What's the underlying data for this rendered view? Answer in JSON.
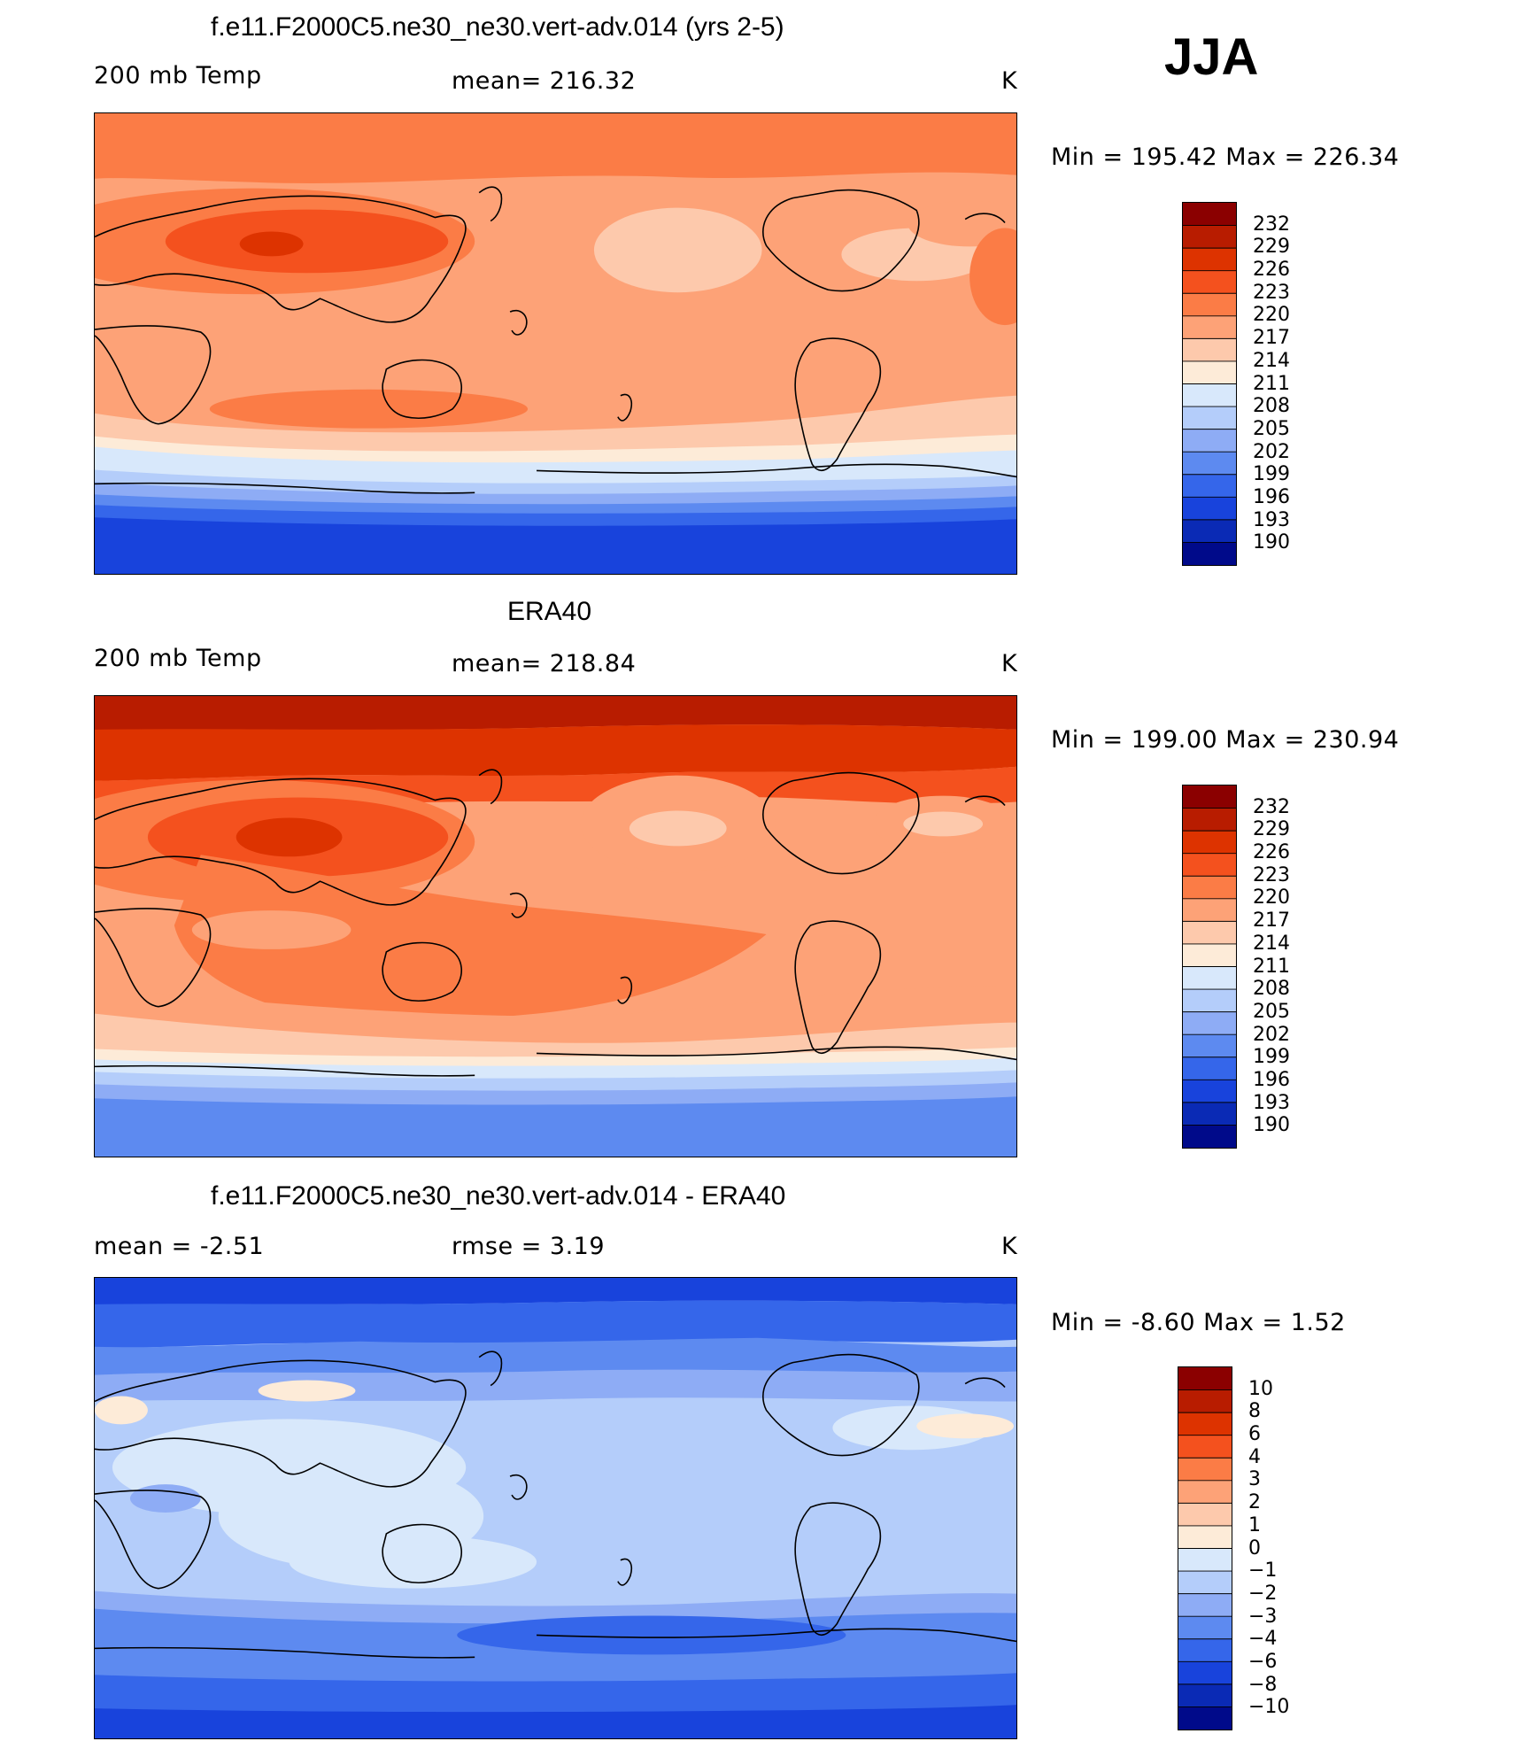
{
  "season": "JJA",
  "panels": [
    {
      "title": "f.e11.F2000C5.ne30_ne30.vert-adv.014 (yrs 2-5)",
      "left_label": "200 mb Temp",
      "center_label": "mean=  216.32",
      "units": "K",
      "minmax": "Min  =  195.42  Max  =  226.34",
      "colorbar": {
        "labels": [
          "232",
          "229",
          "226",
          "223",
          "220",
          "217",
          "214",
          "211",
          "208",
          "205",
          "202",
          "199",
          "196",
          "193",
          "190"
        ],
        "colors": [
          "#8b0000",
          "#b81c00",
          "#dd3300",
          "#f4511e",
          "#fb7c46",
          "#fda277",
          "#fdc9ac",
          "#fdebd8",
          "#d8e8fb",
          "#b4cdfa",
          "#8eacf5",
          "#5d8af0",
          "#3566ea",
          "#1843dc",
          "#0a2ab5",
          "#000a8a"
        ]
      }
    },
    {
      "title": "ERA40",
      "left_label": "200 mb Temp",
      "center_label": "mean=  218.84",
      "units": "K",
      "minmax": "Min  =  199.00  Max  =  230.94",
      "colorbar": {
        "labels": [
          "232",
          "229",
          "226",
          "223",
          "220",
          "217",
          "214",
          "211",
          "208",
          "205",
          "202",
          "199",
          "196",
          "193",
          "190"
        ],
        "colors": [
          "#8b0000",
          "#b81c00",
          "#dd3300",
          "#f4511e",
          "#fb7c46",
          "#fda277",
          "#fdc9ac",
          "#fdebd8",
          "#d8e8fb",
          "#b4cdfa",
          "#8eacf5",
          "#5d8af0",
          "#3566ea",
          "#1843dc",
          "#0a2ab5",
          "#000a8a"
        ]
      }
    },
    {
      "title": "f.e11.F2000C5.ne30_ne30.vert-adv.014 - ERA40",
      "left_label": "mean  =     -2.51",
      "center_label": "rmse  =     3.19",
      "units": "K",
      "minmax": "Min  =    -8.60  Max  =     1.52",
      "colorbar": {
        "labels": [
          "10",
          "8",
          "6",
          "4",
          "3",
          "2",
          "1",
          "0",
          "-1",
          "-2",
          "-3",
          "-4",
          "-6",
          "-8",
          "-10"
        ],
        "colors": [
          "#8b0000",
          "#b81c00",
          "#dd3300",
          "#f4511e",
          "#fb7c46",
          "#fda277",
          "#fdc9ac",
          "#fdebd8",
          "#d8e8fb",
          "#b4cdfa",
          "#8eacf5",
          "#5d8af0",
          "#3566ea",
          "#1843dc",
          "#0a2ab5",
          "#000a8a"
        ]
      }
    }
  ]
}
